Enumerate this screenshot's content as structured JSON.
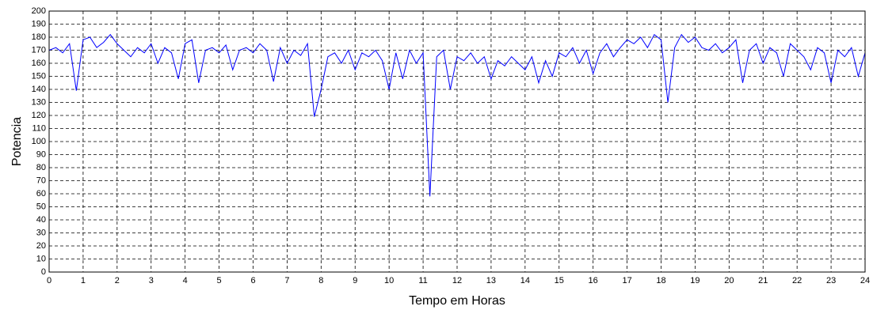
{
  "chart_data": {
    "type": "line",
    "x_label": "Tempo em Horas",
    "y_label": "Potencia",
    "color": "#0000ff",
    "grid": true,
    "xlim": [
      0,
      24
    ],
    "xticks": [
      0,
      1,
      2,
      3,
      4,
      5,
      6,
      7,
      8,
      9,
      10,
      11,
      12,
      13,
      14,
      15,
      16,
      17,
      18,
      19,
      20,
      21,
      22,
      23,
      24
    ],
    "ylim": [
      0,
      200
    ],
    "yticks": [
      0,
      10,
      20,
      30,
      40,
      50,
      60,
      70,
      80,
      90,
      100,
      110,
      120,
      130,
      140,
      150,
      160,
      170,
      180,
      190,
      200
    ],
    "x": [
      0,
      0.2,
      0.4,
      0.6,
      0.8,
      1,
      1.2,
      1.4,
      1.6,
      1.8,
      2,
      2.2,
      2.4,
      2.6,
      2.8,
      3,
      3.2,
      3.4,
      3.6,
      3.8,
      4,
      4.2,
      4.4,
      4.6,
      4.8,
      5,
      5.2,
      5.4,
      5.6,
      5.8,
      6,
      6.2,
      6.4,
      6.6,
      6.8,
      7,
      7.2,
      7.4,
      7.6,
      7.8,
      8,
      8.2,
      8.4,
      8.6,
      8.8,
      9,
      9.2,
      9.4,
      9.6,
      9.8,
      10,
      10.2,
      10.4,
      10.6,
      10.8,
      11,
      11.2,
      11.4,
      11.6,
      11.8,
      12,
      12.2,
      12.4,
      12.6,
      12.8,
      13,
      13.2,
      13.4,
      13.6,
      13.8,
      14,
      14.2,
      14.4,
      14.6,
      14.8,
      15,
      15.2,
      15.4,
      15.6,
      15.8,
      16,
      16.2,
      16.4,
      16.6,
      16.8,
      17,
      17.2,
      17.4,
      17.6,
      17.8,
      18,
      18.2,
      18.4,
      18.6,
      18.8,
      19,
      19.2,
      19.4,
      19.6,
      19.8,
      20,
      20.2,
      20.4,
      20.6,
      20.8,
      21,
      21.2,
      21.4,
      21.6,
      21.8,
      22,
      22.2,
      22.4,
      22.6,
      22.8,
      23,
      23.2,
      23.4,
      23.6,
      23.8,
      24
    ],
    "values": [
      170,
      172,
      168,
      175,
      139,
      178,
      180,
      172,
      176,
      182,
      175,
      170,
      165,
      172,
      168,
      175,
      160,
      172,
      168,
      148,
      175,
      178,
      145,
      170,
      172,
      168,
      174,
      155,
      170,
      172,
      168,
      175,
      170,
      146,
      172,
      160,
      170,
      166,
      175,
      119,
      140,
      165,
      168,
      160,
      170,
      155,
      168,
      165,
      170,
      162,
      140,
      168,
      148,
      170,
      160,
      168,
      58,
      165,
      170,
      140,
      165,
      162,
      168,
      160,
      165,
      148,
      162,
      158,
      165,
      160,
      155,
      165,
      145,
      162,
      150,
      168,
      165,
      172,
      160,
      170,
      152,
      168,
      175,
      165,
      172,
      178,
      175,
      180,
      172,
      182,
      178,
      130,
      172,
      182,
      176,
      180,
      172,
      170,
      175,
      168,
      172,
      178,
      145,
      170,
      175,
      160,
      172,
      168,
      150,
      175,
      170,
      165,
      155,
      172,
      168,
      145,
      170,
      165,
      172,
      150,
      168
    ]
  }
}
